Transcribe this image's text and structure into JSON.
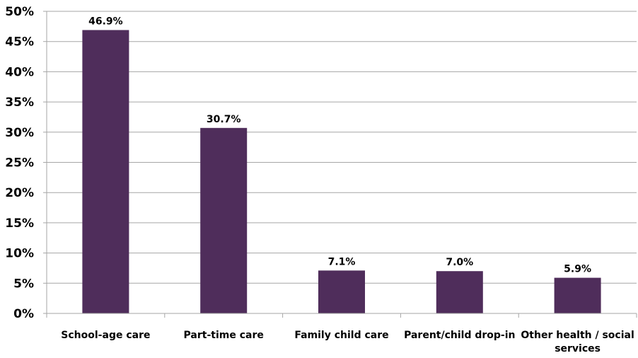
{
  "chart_data": {
    "type": "bar",
    "categories": [
      "School-age care",
      "Part-time care",
      "Family child care",
      "Parent/child drop-in",
      "Other health / social services"
    ],
    "values": [
      46.9,
      30.7,
      7.1,
      7.0,
      5.9
    ],
    "data_labels": [
      "46.9%",
      "30.7%",
      "7.1%",
      "7.0%",
      "5.9%"
    ],
    "y_ticks": [
      "0%",
      "5%",
      "10%",
      "15%",
      "20%",
      "25%",
      "30%",
      "35%",
      "40%",
      "45%",
      "50%"
    ],
    "ylim": [
      0,
      50
    ],
    "grid": true,
    "legend": "none",
    "bar_color": "#4f2d5b",
    "grid_color": "#a6a6a6",
    "title": "",
    "xlabel": "",
    "ylabel": ""
  }
}
